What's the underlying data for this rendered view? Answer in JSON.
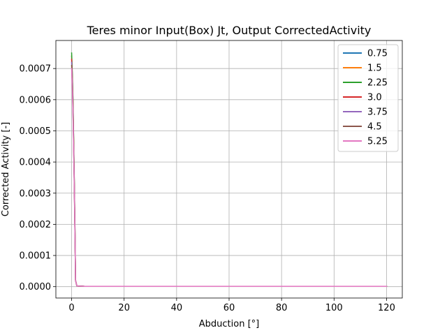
{
  "chart_data": {
    "type": "line",
    "title": "Teres minor Input(Box) Jt, Output CorrectedActivity",
    "xlabel": "Abduction [°]",
    "ylabel": "Corrected Activity [-]",
    "xlim": [
      -6,
      126
    ],
    "ylim": [
      -3.65e-05,
      0.00079
    ],
    "xticks": [
      0,
      20,
      40,
      60,
      80,
      100,
      120
    ],
    "xtick_labels": [
      "0",
      "20",
      "40",
      "60",
      "80",
      "100",
      "120"
    ],
    "yticks": [
      0,
      0.0001,
      0.0002,
      0.0003,
      0.0004,
      0.0005,
      0.0006,
      0.0007
    ],
    "ytick_labels": [
      "0.0000",
      "0.0001",
      "0.0002",
      "0.0003",
      "0.0004",
      "0.0005",
      "0.0006",
      "0.0007"
    ],
    "grid": true,
    "legend_position": "top-right",
    "series": [
      {
        "name": "0.75",
        "color": "#1f77b4",
        "x": [
          0,
          0.25,
          0.5,
          0.75,
          1.0,
          1.25,
          1.5,
          2,
          5,
          10,
          20,
          40,
          60,
          80,
          100,
          120
        ],
        "y": [
          0.00074,
          0.00068,
          0.0006,
          0.00048,
          0.00035,
          0.0002,
          2e-05,
          2e-06,
          1e-06,
          1e-06,
          1e-06,
          1e-06,
          1e-06,
          1e-06,
          1e-06,
          1e-06
        ]
      },
      {
        "name": "1.5",
        "color": "#ff7f0e",
        "x": [
          0,
          0.25,
          0.5,
          0.75,
          1.0,
          1.25,
          1.5,
          2,
          5,
          10,
          20,
          40,
          60,
          80,
          100,
          120
        ],
        "y": [
          0.00074,
          0.00068,
          0.0006,
          0.00048,
          0.00035,
          0.0002,
          2e-05,
          2e-06,
          1e-06,
          1e-06,
          1e-06,
          1e-06,
          1e-06,
          1e-06,
          1e-06,
          1e-06
        ]
      },
      {
        "name": "2.25",
        "color": "#2ca02c",
        "x": [
          0,
          0.25,
          0.5,
          0.75,
          1.0,
          1.25,
          1.5,
          2,
          5,
          10,
          20,
          40,
          60,
          80,
          100,
          120
        ],
        "y": [
          0.00075,
          0.00069,
          0.00061,
          0.00049,
          0.00035,
          0.0002,
          2e-05,
          2e-06,
          1e-06,
          1e-06,
          1e-06,
          1e-06,
          1e-06,
          1e-06,
          1e-06,
          1e-06
        ]
      },
      {
        "name": "3.0",
        "color": "#d62728",
        "x": [
          0,
          0.25,
          0.5,
          0.75,
          1.0,
          1.25,
          1.5,
          2,
          5,
          10,
          20,
          40,
          60,
          80,
          100,
          120
        ],
        "y": [
          0.00073,
          0.00067,
          0.00059,
          0.00047,
          0.00034,
          0.00019,
          2e-05,
          2e-06,
          1e-06,
          1e-06,
          1e-06,
          1e-06,
          1e-06,
          1e-06,
          1e-06,
          1e-06
        ]
      },
      {
        "name": "3.75",
        "color": "#9467bd",
        "x": [
          0,
          0.25,
          0.5,
          0.75,
          1.0,
          1.25,
          1.5,
          2,
          5,
          10,
          20,
          40,
          60,
          80,
          100,
          120
        ],
        "y": [
          0.00072,
          0.00066,
          0.00058,
          0.00046,
          0.00034,
          0.00019,
          2e-05,
          2e-06,
          1e-06,
          1e-06,
          1e-06,
          1e-06,
          1e-06,
          1e-06,
          1e-06,
          1e-06
        ]
      },
      {
        "name": "4.5",
        "color": "#8c564b",
        "x": [
          0,
          0.25,
          0.5,
          0.75,
          1.0,
          1.25,
          1.5,
          2,
          5,
          10,
          20,
          40,
          60,
          80,
          100,
          120
        ],
        "y": [
          0.00071,
          0.00065,
          0.00057,
          0.00046,
          0.00033,
          0.00018,
          2e-05,
          2e-06,
          1e-06,
          1e-06,
          1e-06,
          1e-06,
          1e-06,
          1e-06,
          1e-06,
          1e-06
        ]
      },
      {
        "name": "5.25",
        "color": "#e377c2",
        "x": [
          0,
          0.25,
          0.5,
          0.75,
          1.0,
          1.25,
          1.5,
          2,
          5,
          10,
          20,
          40,
          60,
          80,
          100,
          120
        ],
        "y": [
          0.0007,
          0.00064,
          0.00056,
          0.00045,
          0.00033,
          0.00018,
          2e-05,
          2e-06,
          1e-06,
          1e-06,
          1e-06,
          1e-06,
          1e-06,
          1e-06,
          1e-06,
          1e-06
        ]
      }
    ]
  }
}
